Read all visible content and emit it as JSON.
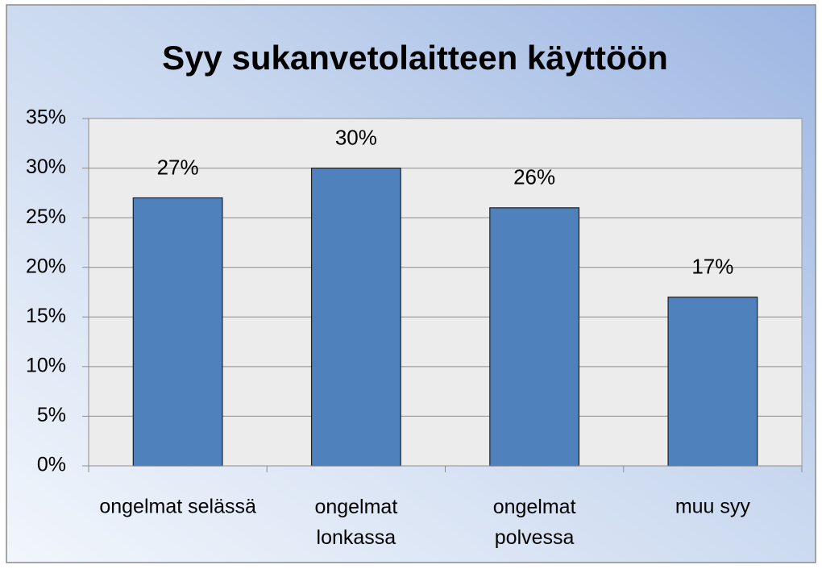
{
  "chart_data": {
    "type": "bar",
    "title": "Syy sukanvetolaitteen käyttöön",
    "categories": [
      "ongelmat selässä",
      "ongelmat\nlonkassa",
      "ongelmat\npolvessa",
      "muu syy"
    ],
    "values": [
      27,
      30,
      26,
      17
    ],
    "value_labels": [
      "27%",
      "30%",
      "26%",
      "17%"
    ],
    "color": "#4f81bd",
    "ylim": [
      0,
      35
    ],
    "yticks": [
      {
        "value": 0,
        "label": "0%"
      },
      {
        "value": 5,
        "label": "5%"
      },
      {
        "value": 10,
        "label": "10%"
      },
      {
        "value": 15,
        "label": "15%"
      },
      {
        "value": 20,
        "label": "20%"
      },
      {
        "value": 25,
        "label": "25%"
      },
      {
        "value": 30,
        "label": "30%"
      },
      {
        "value": 35,
        "label": "35%"
      }
    ],
    "grid": true
  }
}
